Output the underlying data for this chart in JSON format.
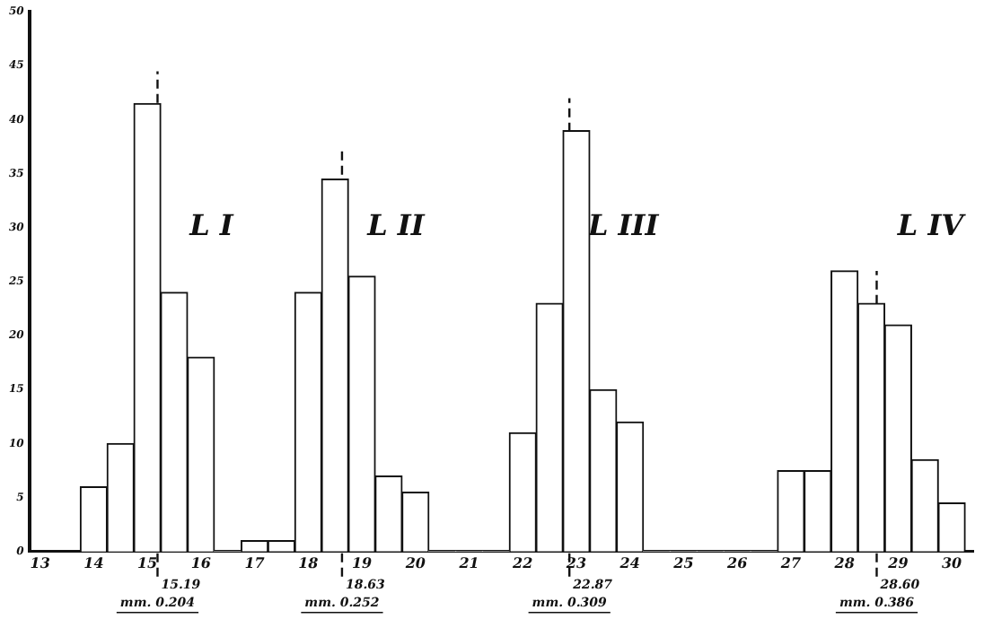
{
  "chart_data": {
    "type": "histogram",
    "bins": [
      13.75,
      14.25,
      14.75,
      15.25,
      15.75,
      16.25,
      16.75,
      17.25,
      17.75,
      18.25,
      18.75,
      19.25,
      19.75,
      20.25,
      20.75,
      21.25,
      21.75,
      22.25,
      22.75,
      23.25,
      23.75,
      24.25,
      24.75,
      25.25,
      25.75,
      26.25,
      26.75,
      27.25,
      27.75,
      28.25,
      28.75,
      29.25,
      29.75,
      30.25
    ],
    "values": [
      6,
      10,
      41.5,
      24,
      18,
      0,
      1,
      1,
      24,
      34.5,
      25.5,
      7,
      5.5,
      0,
      0,
      0,
      11,
      23,
      39,
      15,
      12,
      0,
      0,
      0,
      0,
      0,
      7.5,
      7.5,
      26,
      23,
      21,
      8.5,
      4.5
    ],
    "color": "#ffffff",
    "xlim": [
      12.8,
      30.4
    ],
    "xticks": [
      13,
      14,
      15,
      16,
      17,
      18,
      19,
      20,
      21,
      22,
      23,
      24,
      25,
      26,
      27,
      28,
      29,
      30
    ],
    "ylim": [
      0,
      50
    ],
    "yticks": [
      0,
      5,
      10,
      15,
      20,
      25,
      30,
      35,
      40,
      45,
      50
    ],
    "grid": false,
    "ref_lines": [
      {
        "axis": "x",
        "value": 15.19,
        "label": "15.19",
        "line_style": "dashed"
      },
      {
        "axis": "x",
        "value": 18.63,
        "label": "18.63",
        "line_style": "dashed"
      },
      {
        "axis": "x",
        "value": 22.87,
        "label": "22.87",
        "line_style": "dashed"
      },
      {
        "axis": "x",
        "value": 28.6,
        "label": "28.60",
        "line_style": "dashed"
      }
    ],
    "annotations": [
      "mm. 0.204",
      "mm. 0.252",
      "mm. 0.309",
      "mm. 0.386",
      "L I",
      "L II",
      "L III",
      "L IV"
    ]
  }
}
